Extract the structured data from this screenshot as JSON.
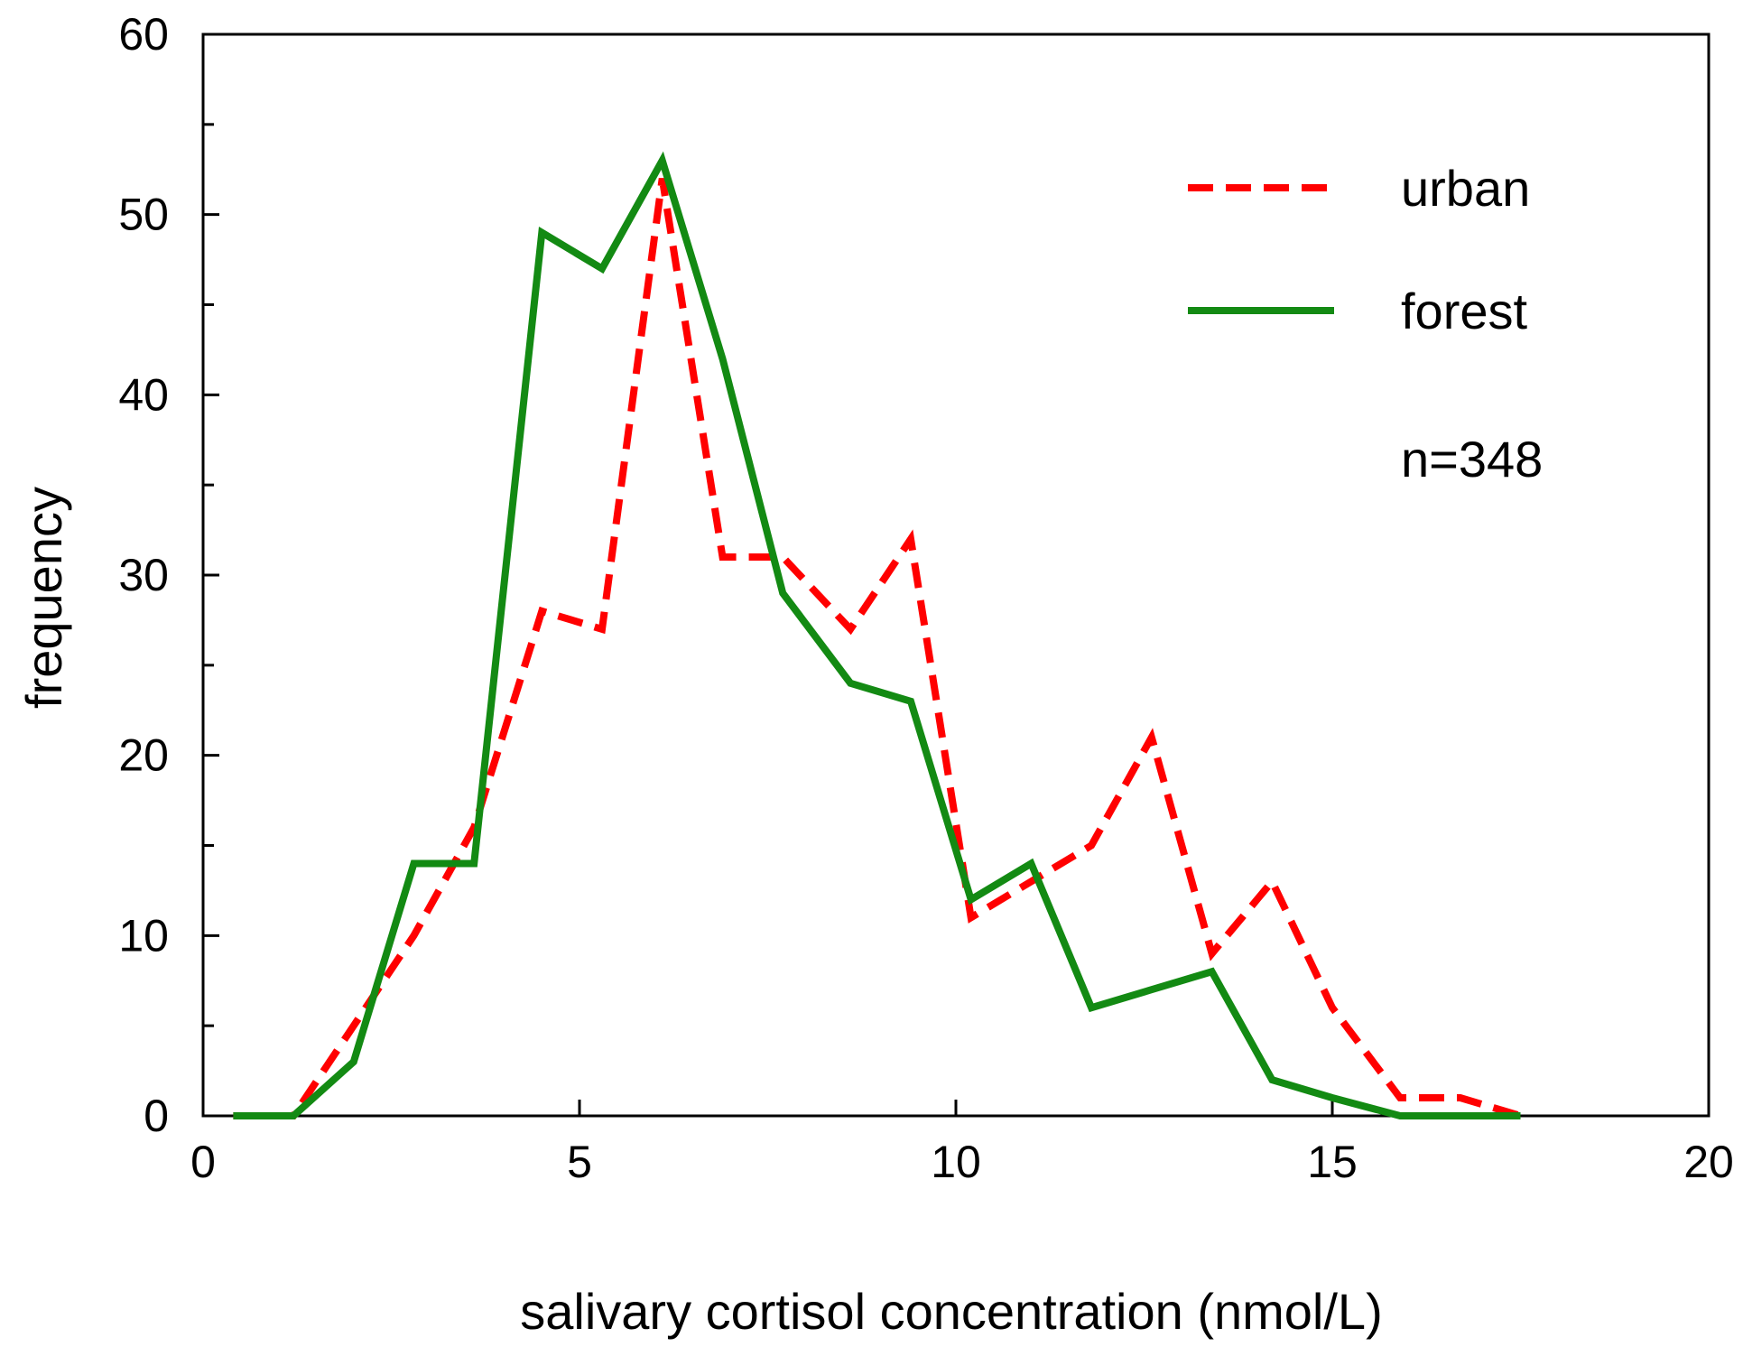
{
  "chart_data": {
    "type": "line",
    "title": "",
    "xlabel": "salivary cortisol concentration (nmol/L)",
    "ylabel": "frequency",
    "xlim": [
      0,
      20
    ],
    "ylim": [
      0,
      60
    ],
    "x_ticks": [
      0,
      5,
      10,
      15,
      20
    ],
    "x_tick_labels": [
      "0",
      "5",
      "10",
      "15",
      "20"
    ],
    "y_ticks": [
      0,
      10,
      20,
      30,
      40,
      50,
      60
    ],
    "y_tick_labels": [
      "0",
      "10",
      "20",
      "30",
      "40",
      "50",
      "60"
    ],
    "y_minor_step": 5,
    "grid": false,
    "legend_position": "top-right",
    "annotation": "n=348",
    "series": [
      {
        "name": "urban",
        "color": "#ff0000",
        "dashed": true,
        "x": [
          0.4,
          1.2,
          2.0,
          2.8,
          3.6,
          4.5,
          5.3,
          6.1,
          6.9,
          7.7,
          8.6,
          9.4,
          10.2,
          11.0,
          11.8,
          12.6,
          13.4,
          14.2,
          15.0,
          15.9,
          16.7,
          17.5
        ],
        "y": [
          0,
          0,
          5,
          10,
          16,
          28,
          27,
          52,
          31,
          31,
          27,
          32,
          11,
          13,
          15,
          21,
          9,
          13,
          6,
          1,
          1,
          0
        ]
      },
      {
        "name": "forest",
        "color": "#138a13",
        "dashed": false,
        "x": [
          0.4,
          1.2,
          2.0,
          2.8,
          3.6,
          4.5,
          5.3,
          6.1,
          6.9,
          7.7,
          8.6,
          9.4,
          10.2,
          11.0,
          11.8,
          12.6,
          13.4,
          14.2,
          15.0,
          15.9,
          16.7,
          17.5
        ],
        "y": [
          0,
          0,
          3,
          14,
          14,
          49,
          47,
          53,
          42,
          29,
          24,
          23,
          12,
          14,
          6,
          7,
          8,
          2,
          1,
          0,
          0,
          0
        ]
      }
    ]
  }
}
